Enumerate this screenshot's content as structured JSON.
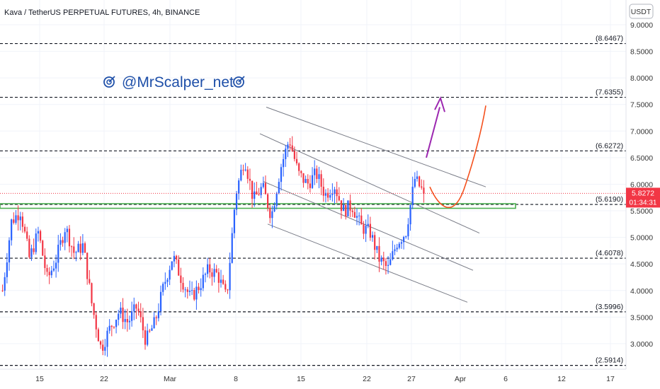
{
  "header": {
    "title": "Kava / TetherUS PERPETUAL FUTURES, 4h, BINANCE",
    "currency_badge": "USDT"
  },
  "watermark": {
    "text": "@MrScalper_net",
    "icon": "target-icon"
  },
  "price_tag": {
    "price": "5.8272",
    "countdown": "01:34:31",
    "value": 5.8272,
    "color": "#f23645"
  },
  "colors": {
    "up": "#2962ff",
    "down": "#f23645",
    "channel": "#787b86",
    "support_zone": "#4caf50",
    "bullish_arrow": "#9c27b0",
    "curve": "#f4511e"
  },
  "chart_data": {
    "type": "candlestick",
    "title": "Kava / TetherUS PERPETUAL FUTURES, 4h, BINANCE",
    "ylim": [
      2.6,
      9.3
    ],
    "y_ticks": [
      "9.0000",
      "8.5000",
      "8.0000",
      "7.5000",
      "7.0000",
      "6.5000",
      "6.0000",
      "5.5000",
      "5.0000",
      "4.5000",
      "4.0000",
      "3.5000",
      "3.0000"
    ],
    "x_ticks": [
      "15",
      "22",
      "Mar",
      "8",
      "15",
      "22",
      "27",
      "Apr",
      "6",
      "12",
      "17"
    ],
    "horizontal_levels": [
      {
        "value": 8.6467,
        "label": "(8.6467)"
      },
      {
        "value": 7.6355,
        "label": "(7.6355)"
      },
      {
        "value": 6.6272,
        "label": "(6.6272)"
      },
      {
        "value": 5.619,
        "label": "(5.6190)"
      },
      {
        "value": 4.6078,
        "label": "(4.6078)"
      },
      {
        "value": 3.5996,
        "label": "(3.5996)"
      },
      {
        "value": 2.5914,
        "label": "(2.5914)"
      }
    ],
    "support_zone": [
      5.56,
      5.62
    ],
    "last_price": 5.8272,
    "price_path": [
      [
        0,
        4.0
      ],
      [
        1,
        5.3
      ],
      [
        2,
        5.5
      ],
      [
        3,
        4.6
      ],
      [
        4,
        5.1
      ],
      [
        5,
        4.2
      ],
      [
        6,
        4.6
      ],
      [
        7,
        5.2
      ],
      [
        8,
        4.7
      ],
      [
        9,
        4.85
      ],
      [
        10,
        3.7
      ],
      [
        11,
        2.9
      ],
      [
        12,
        3.3
      ],
      [
        13,
        3.6
      ],
      [
        14,
        3.4
      ],
      [
        15,
        3.7
      ],
      [
        16,
        3.05
      ],
      [
        17,
        3.4
      ],
      [
        18,
        4.1
      ],
      [
        19,
        4.65
      ],
      [
        20,
        4.2
      ],
      [
        21,
        3.85
      ],
      [
        22,
        4.1
      ],
      [
        23,
        4.4
      ],
      [
        24,
        4.3
      ],
      [
        25,
        3.85
      ],
      [
        26,
        5.8
      ],
      [
        27,
        6.5
      ],
      [
        28,
        5.7
      ],
      [
        29,
        5.95
      ],
      [
        30,
        5.4
      ],
      [
        31,
        6.3
      ],
      [
        32,
        6.85
      ],
      [
        33,
        6.2
      ],
      [
        34,
        6.0
      ],
      [
        35,
        6.2
      ],
      [
        36,
        5.8
      ],
      [
        37,
        6.0
      ],
      [
        38,
        5.5
      ],
      [
        39,
        5.6
      ],
      [
        40,
        5.2
      ],
      [
        41,
        5.1
      ],
      [
        42,
        4.6
      ],
      [
        43,
        4.4
      ],
      [
        44,
        4.9
      ],
      [
        45,
        5.1
      ],
      [
        46,
        6.1
      ],
      [
        47,
        5.83
      ]
    ]
  }
}
